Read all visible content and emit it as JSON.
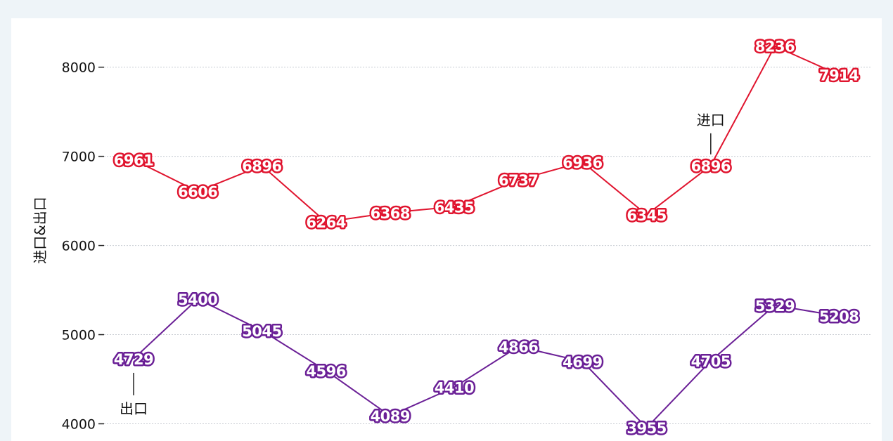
{
  "chart_data": {
    "type": "line",
    "ylabel": "进口&出口",
    "ylim": [
      3870,
      8470
    ],
    "yticks": [
      4000,
      5000,
      6000,
      7000,
      8000
    ],
    "grid": true,
    "series": [
      {
        "name": "进口",
        "color": "#e0142e",
        "values": [
          6961,
          6606,
          6896,
          6264,
          6368,
          6435,
          6737,
          6936,
          6345,
          6896,
          8236,
          7914
        ],
        "annotation_index": 9
      },
      {
        "name": "出口",
        "color": "#6a1f96",
        "values": [
          4729,
          5400,
          5045,
          4596,
          4089,
          4410,
          4866,
          4699,
          3955,
          4705,
          5329,
          5208
        ],
        "annotation_index": 0
      }
    ]
  }
}
